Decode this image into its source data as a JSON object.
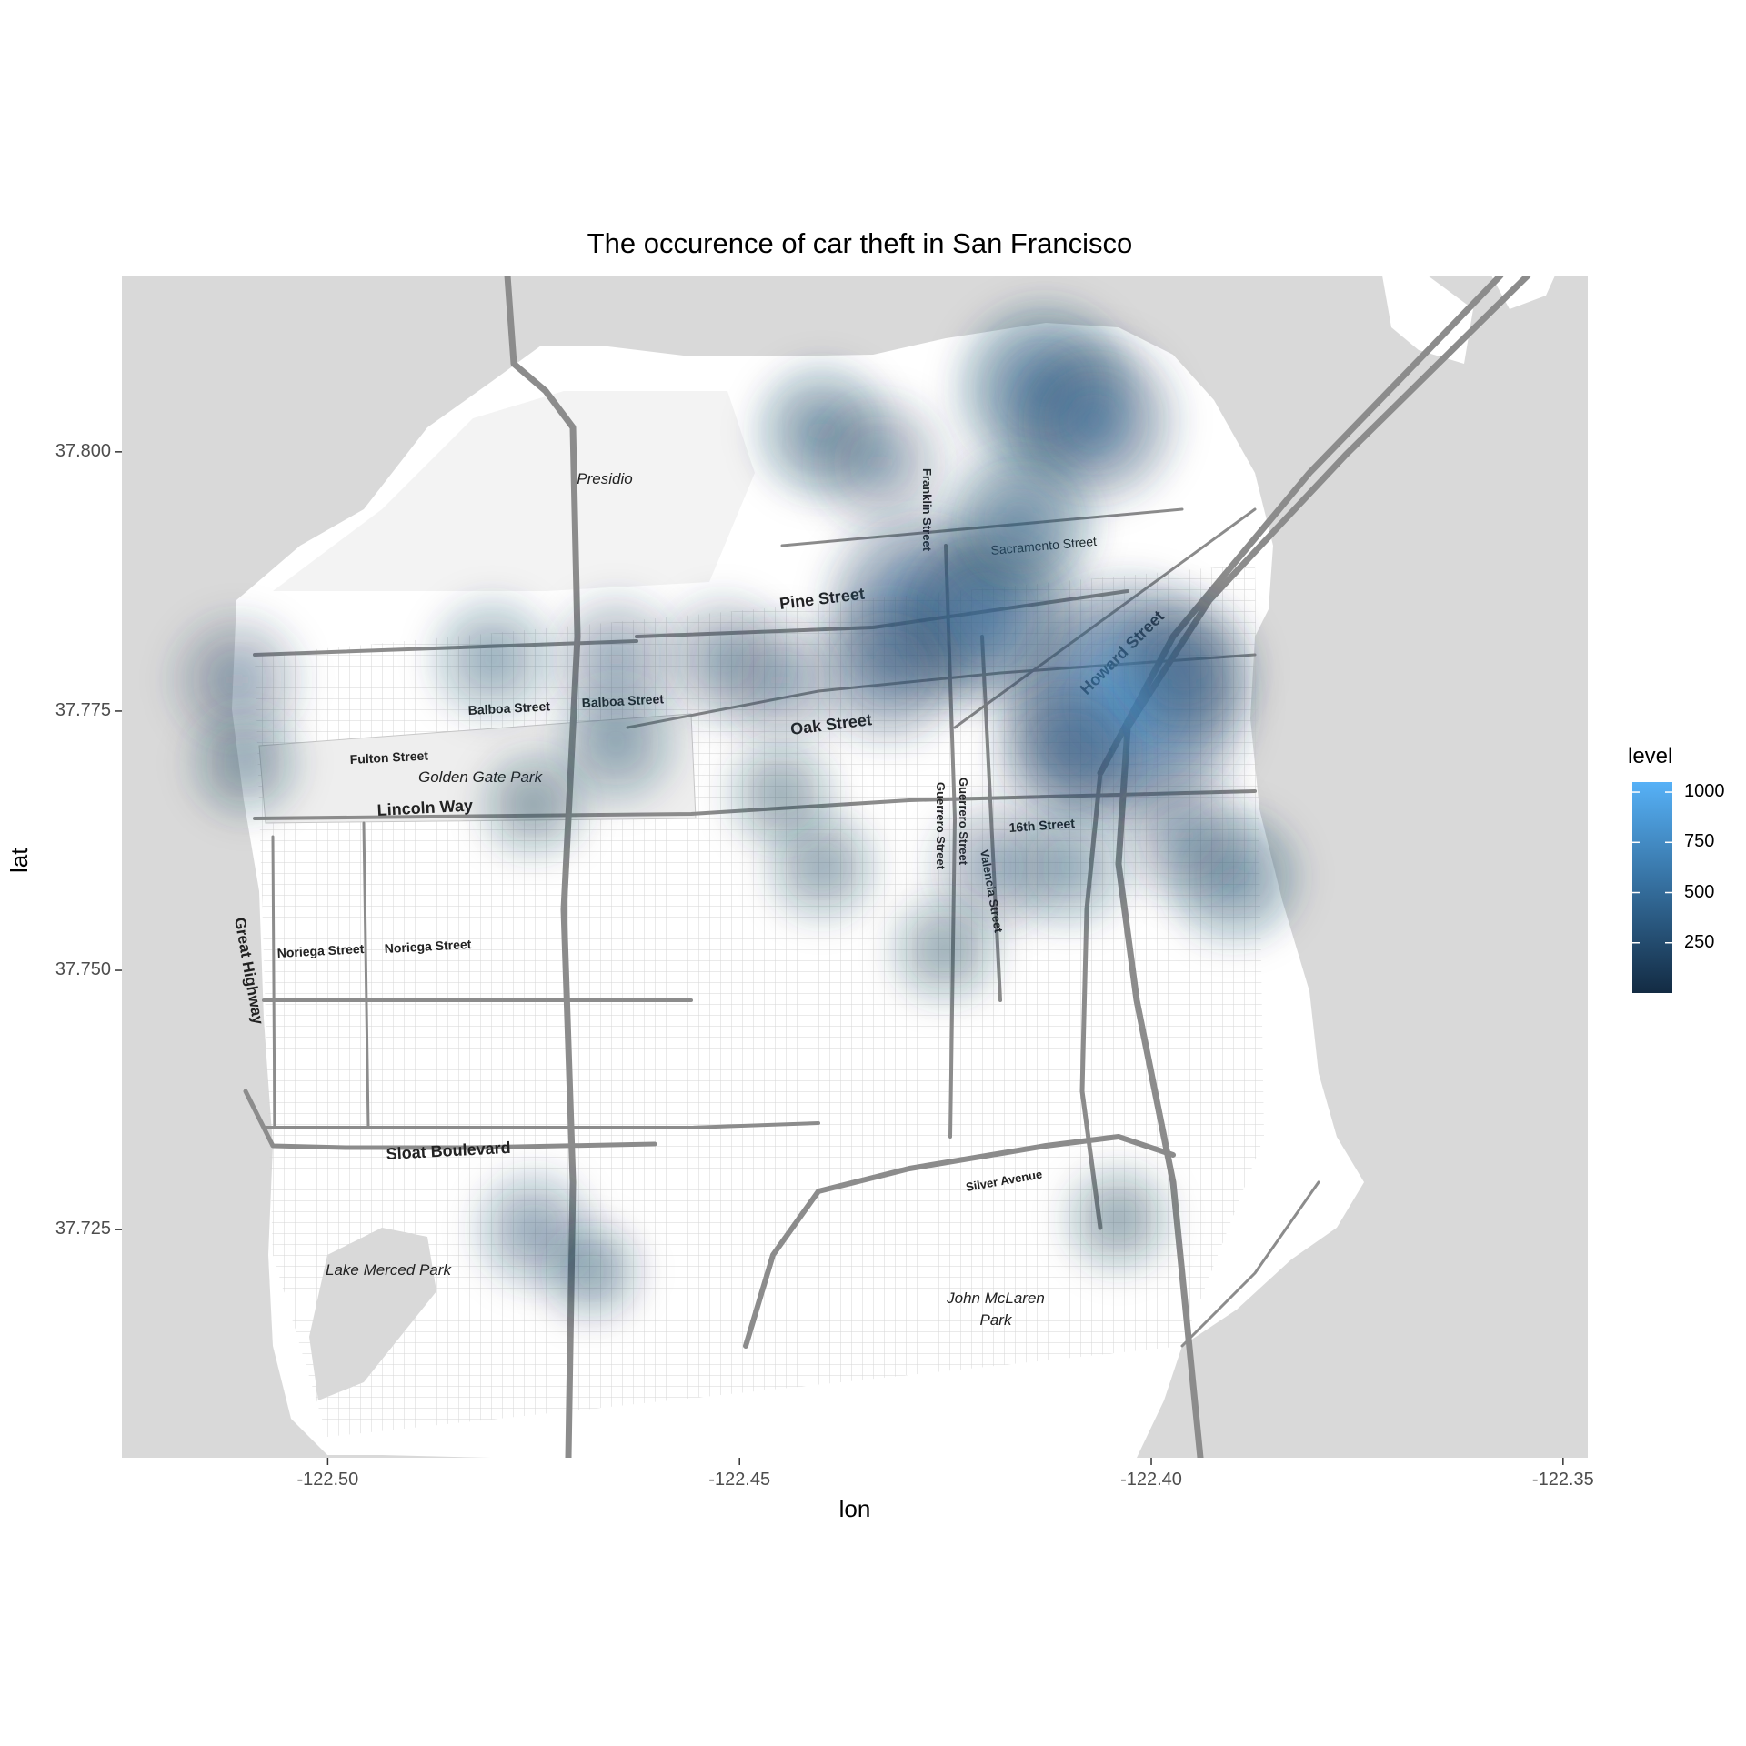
{
  "title": "The occurence of car theft in San Francisco",
  "x_axis": {
    "label": "lon",
    "ticks": [
      "-122.50",
      "-122.45",
      "-122.40",
      "-122.35"
    ],
    "tick_values": [
      -122.5,
      -122.45,
      -122.4,
      -122.35
    ]
  },
  "y_axis": {
    "label": "lat",
    "ticks": [
      "37.800",
      "37.775",
      "37.750",
      "37.725"
    ],
    "tick_values": [
      37.8,
      37.775,
      37.75,
      37.725
    ]
  },
  "legend": {
    "title": "level",
    "breaks": [
      "1000",
      "750",
      "500",
      "250"
    ],
    "break_values": [
      1000,
      750,
      500,
      250
    ],
    "range": [
      0,
      1050
    ],
    "color_low": "#132b43",
    "color_high": "#56b1f7"
  },
  "map": {
    "water_color": "#d9d9d9",
    "land_color": "#ffffff",
    "road_color": "#8c8c8c",
    "labels": {
      "presidio": "Presidio",
      "franklin": "Franklin Street",
      "sacramento": "Sacramento Street",
      "pine": "Pine Street",
      "howard": "Howard Street",
      "balboa1": "Balboa Street",
      "balboa2": "Balboa Street",
      "oak": "Oak Street",
      "fulton": "Fulton Street",
      "ggpark": "Golden Gate Park",
      "lincoln": "Lincoln Way",
      "guerrero1": "Guerrero Street",
      "guerrero2": "Guerrero Street",
      "valencia": "Valencia Street",
      "sixteenth": "16th Street",
      "great_highway": "Great Highway",
      "noriega1": "Noriega Street",
      "noriega2": "Noriega Street",
      "sloat": "Sloat Boulevard",
      "silver": "Silver Avenue",
      "lake_merced": "Lake Merced Park",
      "mclaren1": "John McLaren",
      "mclaren2": "Park"
    }
  },
  "chart_data": {
    "type": "heatmap",
    "title": "The occurence of car theft in San Francisco",
    "xlabel": "lon",
    "ylabel": "lat",
    "xlim": [
      -122.525,
      -122.347
    ],
    "ylim": [
      37.703,
      37.817
    ],
    "fill_variable": "level",
    "fill_range": [
      0,
      1050
    ],
    "hotspots": [
      {
        "lon": -122.403,
        "lat": 37.776,
        "level": 1000
      },
      {
        "lon": -122.428,
        "lat": 37.785,
        "level": 650
      },
      {
        "lon": -122.42,
        "lat": 37.784,
        "level": 600
      },
      {
        "lon": -122.413,
        "lat": 37.806,
        "level": 560
      },
      {
        "lon": -122.407,
        "lat": 37.803,
        "level": 520
      },
      {
        "lon": -122.416,
        "lat": 37.793,
        "level": 420
      },
      {
        "lon": -122.432,
        "lat": 37.779,
        "level": 380
      },
      {
        "lon": -122.41,
        "lat": 37.771,
        "level": 380
      },
      {
        "lon": -122.396,
        "lat": 37.779,
        "level": 360
      },
      {
        "lon": -122.44,
        "lat": 37.802,
        "level": 300
      },
      {
        "lon": -122.433,
        "lat": 37.799,
        "level": 280
      },
      {
        "lon": -122.445,
        "lat": 37.778,
        "level": 250
      },
      {
        "lon": -122.452,
        "lat": 37.78,
        "level": 240
      },
      {
        "lon": -122.39,
        "lat": 37.759,
        "level": 300
      },
      {
        "lon": -122.396,
        "lat": 37.763,
        "level": 250
      },
      {
        "lon": -122.419,
        "lat": 37.76,
        "level": 260
      },
      {
        "lon": -122.41,
        "lat": 37.76,
        "level": 220
      },
      {
        "lon": -122.465,
        "lat": 37.78,
        "level": 250
      },
      {
        "lon": -122.48,
        "lat": 37.78,
        "level": 220
      },
      {
        "lon": -122.465,
        "lat": 37.772,
        "level": 230
      },
      {
        "lon": -122.511,
        "lat": 37.778,
        "level": 260
      },
      {
        "lon": -122.51,
        "lat": 37.77,
        "level": 150
      },
      {
        "lon": -122.44,
        "lat": 37.76,
        "level": 150
      },
      {
        "lon": -122.425,
        "lat": 37.752,
        "level": 140
      },
      {
        "lon": -122.475,
        "lat": 37.725,
        "level": 190
      },
      {
        "lon": -122.404,
        "lat": 37.726,
        "level": 130
      },
      {
        "lon": -122.475,
        "lat": 37.766,
        "level": 130
      },
      {
        "lon": -122.445,
        "lat": 37.767,
        "level": 130
      },
      {
        "lon": -122.468,
        "lat": 37.721,
        "level": 90
      }
    ]
  }
}
